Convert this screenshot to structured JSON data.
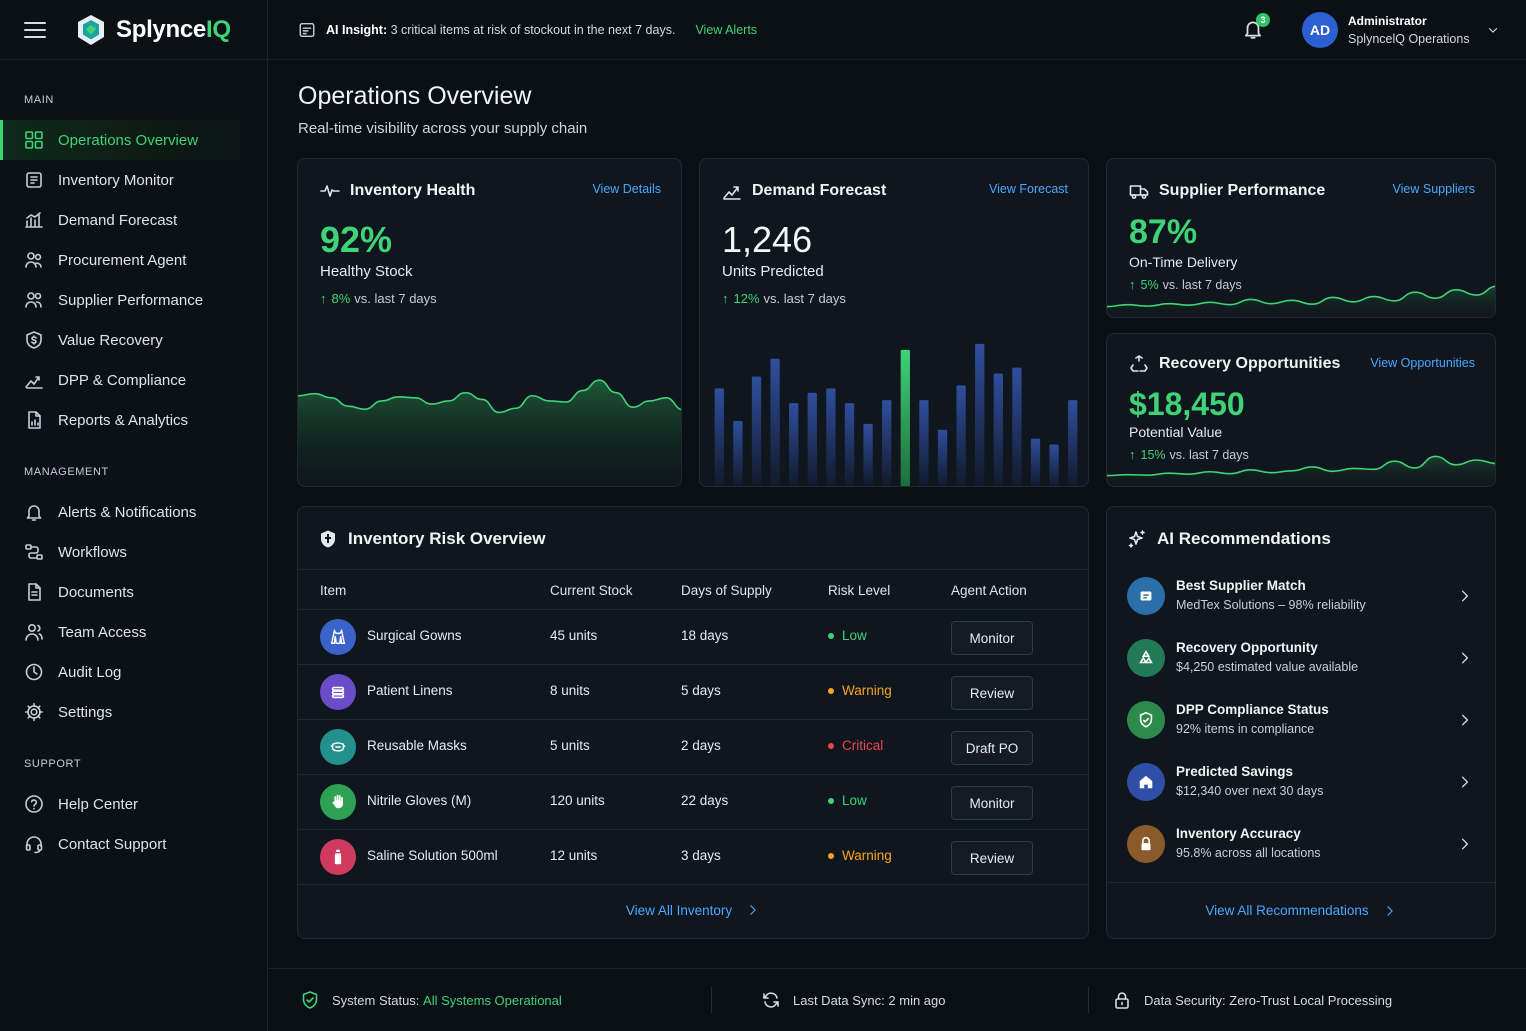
{
  "brand": {
    "name_main": "Splynce",
    "name_accent": "IQ"
  },
  "topbar": {
    "insight_label": "AI Insight:",
    "insight_text": "3 critical items at risk of stockout in the next 7 days.",
    "insight_link": "View Alerts",
    "notification_count": "3",
    "user_initials": "AD",
    "user_name": "Administrator",
    "user_org": "SplyncelQ Operations"
  },
  "sidebar": {
    "sections": [
      {
        "title": "MAIN",
        "items": [
          {
            "label": "Operations Overview",
            "icon": "grid-icon",
            "active": true
          },
          {
            "label": "Inventory Monitor",
            "icon": "inventory-icon"
          },
          {
            "label": "Demand Forecast",
            "icon": "chart-icon"
          },
          {
            "label": "Procurement Agent",
            "icon": "agent-icon"
          },
          {
            "label": "Supplier Performance",
            "icon": "users-icon"
          },
          {
            "label": "Value Recovery",
            "icon": "shield-dollar-icon"
          },
          {
            "label": "DPP & Compliance",
            "icon": "trend-icon"
          },
          {
            "label": "Reports & Analytics",
            "icon": "report-icon"
          }
        ]
      },
      {
        "title": "MANAGEMENT",
        "items": [
          {
            "label": "Alerts & Notifications",
            "icon": "bell-icon"
          },
          {
            "label": "Workflows",
            "icon": "workflow-icon"
          },
          {
            "label": "Documents",
            "icon": "document-icon"
          },
          {
            "label": "Team Access",
            "icon": "team-icon"
          },
          {
            "label": "Audit Log",
            "icon": "clock-icon"
          },
          {
            "label": "Settings",
            "icon": "gear-icon"
          }
        ]
      },
      {
        "title": "SUPPORT",
        "items": [
          {
            "label": "Help Center",
            "icon": "help-icon"
          },
          {
            "label": "Contact Support",
            "icon": "headset-icon"
          }
        ]
      }
    ]
  },
  "page": {
    "title": "Operations Overview",
    "subtitle": "Real-time visibility across your supply chain"
  },
  "cards": {
    "inventory_health": {
      "title": "Inventory Health",
      "link": "View Details",
      "value": "92%",
      "label": "Healthy Stock",
      "delta_pct": "8%",
      "delta_text": "vs. last 7 days",
      "trend": [
        0.62,
        0.66,
        0.58,
        0.42,
        0.36,
        0.52,
        0.6,
        0.58,
        0.46,
        0.52,
        0.68,
        0.55,
        0.3,
        0.38,
        0.62,
        0.52,
        0.5,
        0.72,
        0.92,
        0.68,
        0.4,
        0.52,
        0.58,
        0.35
      ]
    },
    "demand_forecast": {
      "title": "Demand Forecast",
      "link": "View Forecast",
      "value": "1,246",
      "label": "Units Predicted",
      "delta_pct": "12%",
      "delta_text": "vs. last 7 days",
      "bars": [
        0.66,
        0.44,
        0.74,
        0.86,
        0.56,
        0.63,
        0.66,
        0.56,
        0.42,
        0.58,
        0.92,
        0.58,
        0.38,
        0.68,
        0.96,
        0.76,
        0.8,
        0.32,
        0.28,
        0.58
      ],
      "highlight_index": 10,
      "bar_color": "#2f4f9e",
      "highlight_color": "#3fd277"
    },
    "supplier_performance": {
      "title": "Supplier Performance",
      "link": "View Suppliers",
      "value": "87%",
      "label": "On-Time Delivery",
      "delta_pct": "5%",
      "delta_text": "vs. last 7 days",
      "trend": [
        0.1,
        0.18,
        0.12,
        0.22,
        0.16,
        0.28,
        0.18,
        0.4,
        0.22,
        0.36,
        0.2,
        0.48,
        0.3,
        0.52,
        0.34,
        0.7,
        0.45,
        0.8,
        0.58,
        0.95
      ]
    },
    "recovery_opportunities": {
      "title": "Recovery Opportunities",
      "link": "View Opportunities",
      "value": "$18,450",
      "label": "Potential Value",
      "delta_pct": "15%",
      "delta_text": "vs. last 7 days",
      "trend": [
        0.1,
        0.14,
        0.12,
        0.2,
        0.16,
        0.26,
        0.18,
        0.34,
        0.22,
        0.3,
        0.46,
        0.28,
        0.4,
        0.36,
        0.7,
        0.42,
        0.9,
        0.55,
        0.75,
        0.6
      ]
    }
  },
  "risk_table": {
    "title": "Inventory Risk Overview",
    "columns": [
      "Item",
      "Current Stock",
      "Days of Supply",
      "Risk Level",
      "Agent Action"
    ],
    "rows": [
      {
        "item": "Surgical Gowns",
        "stock": "45 units",
        "days": "18 days",
        "risk": "Low",
        "action": "Monitor",
        "risk_color": "#3fd277",
        "icon_color": "#3a63c9",
        "icon": "gown-icon"
      },
      {
        "item": "Patient Linens",
        "stock": "8 units",
        "days": "5 days",
        "risk": "Warning",
        "action": "Review",
        "risk_color": "#f5a524",
        "icon_color": "#6a4cc8",
        "icon": "linens-icon"
      },
      {
        "item": "Reusable Masks",
        "stock": "5 units",
        "days": "2 days",
        "risk": "Critical",
        "action": "Draft PO",
        "risk_color": "#f0454f",
        "icon_color": "#24908e",
        "icon": "mask-icon"
      },
      {
        "item": "Nitrile Gloves (M)",
        "stock": "120 units",
        "days": "22 days",
        "risk": "Low",
        "action": "Monitor",
        "risk_color": "#3fd277",
        "icon_color": "#2fa153",
        "icon": "glove-icon"
      },
      {
        "item": "Saline Solution 500ml",
        "stock": "12 units",
        "days": "3 days",
        "risk": "Warning",
        "action": "Review",
        "risk_color": "#f5a524",
        "icon_color": "#cf3a5e",
        "icon": "bottle-icon"
      }
    ],
    "footer_link": "View All Inventory"
  },
  "recommendations": {
    "title": "AI Recommendations",
    "items": [
      {
        "title": "Best Supplier Match",
        "subtitle": "MedTex Solutions – 98% reliability",
        "icon": "supplier-icon",
        "color": "#2a6fa8"
      },
      {
        "title": "Recovery Opportunity",
        "subtitle": "$4,250 estimated value available",
        "icon": "recycle-icon",
        "color": "#227a56"
      },
      {
        "title": "DPP Compliance Status",
        "subtitle": "92% items in compliance",
        "icon": "compliance-icon",
        "color": "#2c8a4c"
      },
      {
        "title": "Predicted Savings",
        "subtitle": "$12,340 over next 30 days",
        "icon": "savings-icon",
        "color": "#2f4fa6"
      },
      {
        "title": "Inventory Accuracy",
        "subtitle": "95.8% across all locations",
        "icon": "lock-icon",
        "color": "#8a5a2a"
      }
    ],
    "footer_link": "View All Recommendations"
  },
  "status_bar": {
    "system_label": "System Status:",
    "system_value": "All Systems Operational",
    "sync_label": "Last Data Sync:",
    "sync_value": "2 min ago",
    "security_label": "Data Security:",
    "security_value": "Zero-Trust Local Processing"
  },
  "colors": {
    "accent": "#3fd277",
    "link": "#4aa7ff",
    "background": "#0b1016",
    "card": "#10161d"
  }
}
